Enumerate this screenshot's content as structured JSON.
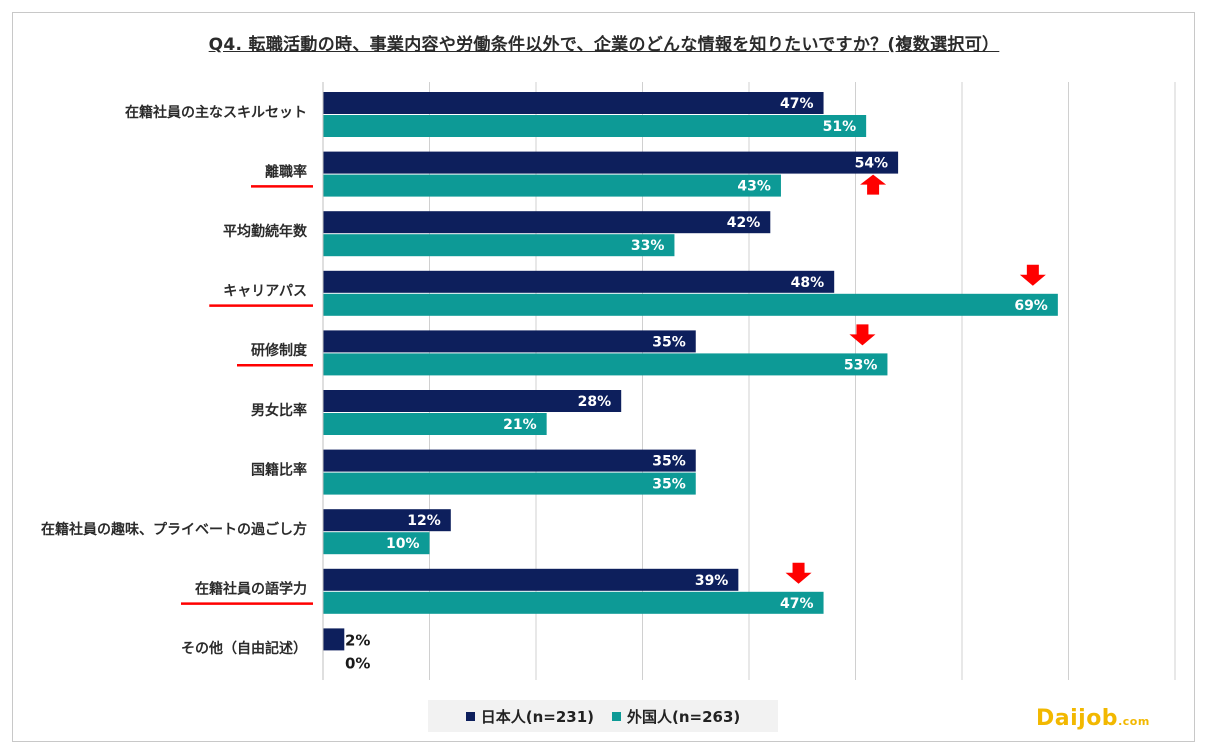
{
  "chart_data": {
    "type": "bar",
    "orientation": "horizontal",
    "title": "Q4. 転職活動の時、事業内容や労働条件以外で、企業のどんな情報を知りたいですか？(複数選択可）",
    "categories": [
      "在籍社員の主なスキルセット",
      "離職率",
      "平均勤続年数",
      "キャリアパス",
      "研修制度",
      "男女比率",
      "国籍比率",
      "在籍社員の趣味、プライベートの過ごし方",
      "在籍社員の語学力",
      "その他（自由記述）"
    ],
    "series": [
      {
        "name": "日本人(n=231)",
        "color": "#0d1f5c",
        "values": [
          47,
          54,
          42,
          48,
          35,
          28,
          35,
          12,
          39,
          2
        ],
        "labels": [
          "47%",
          "54%",
          "42%",
          "48%",
          "35%",
          "28%",
          "35%",
          "12%",
          "39%",
          "2%"
        ]
      },
      {
        "name": "外国人(n=263)",
        "color": "#0d9a96",
        "values": [
          51,
          43,
          33,
          69,
          53,
          21,
          35,
          10,
          47,
          0
        ],
        "labels": [
          "51%",
          "43%",
          "33%",
          "69%",
          "53%",
          "21%",
          "35%",
          "10%",
          "47%",
          "0%"
        ]
      }
    ],
    "highlighted_categories": [
      "離職率",
      "キャリアパス",
      "研修制度",
      "在籍社員の語学力"
    ],
    "annotations": [
      {
        "category": "離職率",
        "type": "arrow-up",
        "color": "#ff0000"
      },
      {
        "category": "キャリアパス",
        "type": "arrow-down",
        "color": "#ff0000"
      },
      {
        "category": "研修制度",
        "type": "arrow-down",
        "color": "#ff0000"
      },
      {
        "category": "在籍社員の語学力",
        "type": "arrow-down",
        "color": "#ff0000"
      }
    ],
    "xlim": [
      0,
      80
    ],
    "grid": true,
    "legend_position": "bottom"
  },
  "legend": {
    "items": [
      {
        "label": "日本人(n=231)",
        "color": "#0d1f5c"
      },
      {
        "label": "外国人(n=263)",
        "color": "#0d9a96"
      }
    ]
  },
  "brand": {
    "name": "Daijob",
    "domain": ".com"
  }
}
